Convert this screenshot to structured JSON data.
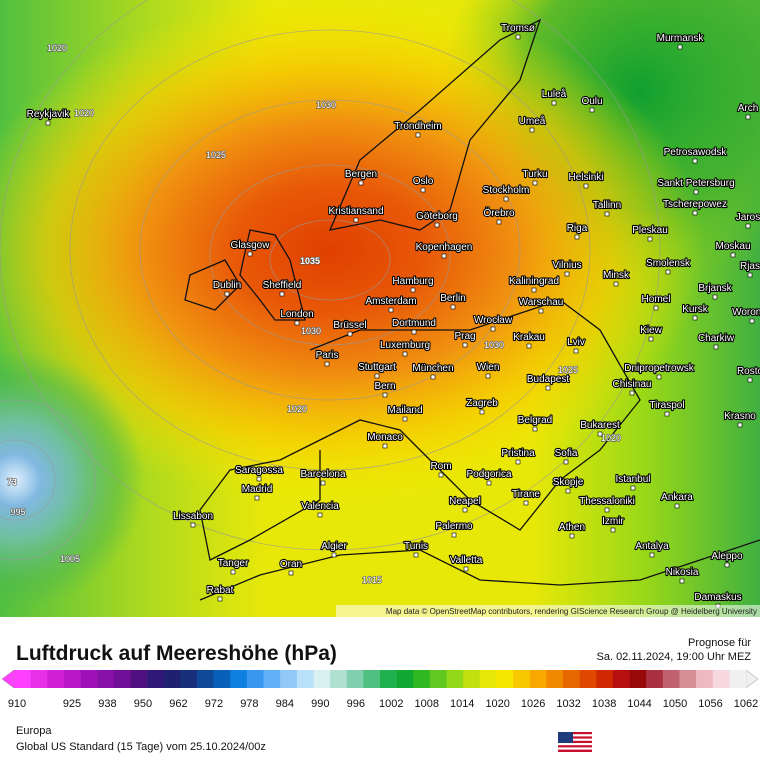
{
  "map": {
    "pressure_labels": [
      "1020",
      "1020",
      "1030",
      "1025",
      "1035",
      "1030",
      "1030",
      "1025",
      "1020",
      "1020",
      "73",
      "995",
      "1005",
      "1015"
    ],
    "cities": [
      "Tromsø",
      "Murmansk",
      "Reykjavik",
      "Luleå",
      "Oulu",
      "Arch",
      "Umeå",
      "Trondheim",
      "Petrosawodsk",
      "Bergen",
      "Oslo",
      "Turku",
      "Helsinki",
      "Sankt Petersburg",
      "Stockholm",
      "Kristiansand",
      "Göteborg",
      "Örebro",
      "Tallinn",
      "Tscherepowez",
      "Jaros",
      "Riga",
      "Pleskau",
      "Glasgow",
      "Kopenhagen",
      "Moskau",
      "Vilnius",
      "Smolensk",
      "Rjas",
      "Hamburg",
      "Minsk",
      "Kaliningrad",
      "Dublin",
      "Sheffield",
      "Brjansk",
      "Amsterdam",
      "Berlin",
      "Warschau",
      "Homel",
      "Kursk",
      "Woronez",
      "London",
      "Wrocław",
      "Brüssel",
      "Dortmund",
      "Kiew",
      "Prag",
      "Krakau",
      "Charkiw",
      "Luxemburg",
      "Lviv",
      "Paris",
      "Stuttgart",
      "München",
      "Wien",
      "Dnipropetrowsk",
      "Rosto",
      "Budapest",
      "Chisinau",
      "Bern",
      "Tiraspol",
      "Mailand",
      "Zagreb",
      "Krasno",
      "Belgrad",
      "Bukarest",
      "Monaco",
      "Pristina",
      "Sofia",
      "Saragossa",
      "Barcelona",
      "Rom",
      "Podgorica",
      "Istanbul",
      "Madrid",
      "Skopje",
      "Valencia",
      "Neapel",
      "Tirane",
      "Thessaloniki",
      "Ankara",
      "Lissabon",
      "Izmir",
      "Palermo",
      "Athen",
      "Algier",
      "Tunis",
      "Antalya",
      "Aleppo",
      "Tanger",
      "Oran",
      "Valletta",
      "Nikosia",
      "Rabat",
      "Damaskus"
    ],
    "attribution": "Map data © OpenStreetMap contributors, rendering GIScience Research Group @ Heidelberg University"
  },
  "header": {
    "title": "Luftdruck auf Meereshöhe (hPa)",
    "forecast_label": "Prognose für",
    "forecast_time": "Sa. 02.11.2024, 19:00 Uhr MEZ"
  },
  "legend": {
    "ticks": [
      910,
      925,
      938,
      950,
      962,
      972,
      978,
      984,
      990,
      996,
      1002,
      1008,
      1014,
      1020,
      1026,
      1032,
      1038,
      1044,
      1050,
      1056,
      1062
    ],
    "colors": [
      "#ff40ff",
      "#e830e8",
      "#d020d8",
      "#b818c8",
      "#a010b8",
      "#8810a8",
      "#701098",
      "#501080",
      "#301878",
      "#202070",
      "#18307c",
      "#104898",
      "#0860b8",
      "#1080e0",
      "#3898f0",
      "#60b0f8",
      "#90c8f8",
      "#b8e0f8",
      "#d8f0f0",
      "#b0e0d0",
      "#80d0b0",
      "#50c080",
      "#20b050",
      "#10a830",
      "#30b820",
      "#60c820",
      "#90d818",
      "#c0e010",
      "#e8e808",
      "#f8e800",
      "#f8c800",
      "#f8a800",
      "#f08800",
      "#e86800",
      "#e04800",
      "#d02800",
      "#b81010",
      "#980808",
      "#a83040",
      "#c06070",
      "#d89098",
      "#f0b8c0",
      "#f8d8e0",
      "#f0f0f0"
    ]
  },
  "footer": {
    "region": "Europa",
    "model": "Global US Standard (15 Tage) vom  25.10.2024/00z"
  }
}
